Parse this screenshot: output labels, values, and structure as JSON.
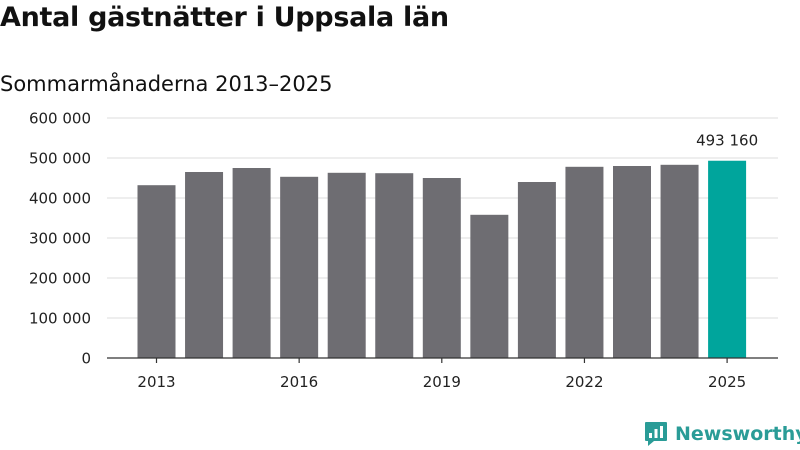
{
  "title": "Antal gästnätter i Uppsala län",
  "subtitle": "Sommarmånaderna 2013–2025",
  "brand": {
    "name": "Newsworthy",
    "icon": "newsworthy-logo-icon",
    "color": "#2a9c97"
  },
  "chart_data": {
    "type": "bar",
    "categories": [
      "2013",
      "2014",
      "2015",
      "2016",
      "2017",
      "2018",
      "2019",
      "2020",
      "2021",
      "2022",
      "2023",
      "2024",
      "2025"
    ],
    "values": [
      432000,
      465000,
      475000,
      453000,
      463000,
      462000,
      450000,
      358000,
      440000,
      478000,
      480000,
      483000,
      493160
    ],
    "x_tick_labels": [
      "2013",
      "2016",
      "2019",
      "2022",
      "2025"
    ],
    "y_tick_labels": [
      "0",
      "100 000",
      "200 000",
      "300 000",
      "400 000",
      "500 000",
      "600 000"
    ],
    "ylim": [
      0,
      600000
    ],
    "grid": true,
    "bar_color": "#6e6d72",
    "highlight_color": "#00a59c",
    "highlight_category": "2025",
    "data_labels": [
      {
        "category": "2025",
        "text": "493 160"
      }
    ]
  }
}
